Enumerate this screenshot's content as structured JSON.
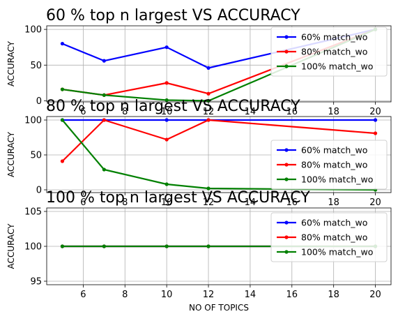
{
  "chart_data": [
    {
      "type": "line",
      "title": "60 % top n largest VS ACCURACY",
      "xlabel": "",
      "ylabel": "ACCURACY",
      "x": [
        5,
        7,
        10,
        12,
        20
      ],
      "xlim": [
        4.25,
        20.75
      ],
      "ylim": [
        -1.5,
        105
      ],
      "xticks": [
        6,
        8,
        10,
        12,
        14,
        16,
        18,
        20
      ],
      "yticks": [
        0,
        50,
        100
      ],
      "grid": true,
      "legend": "top-right",
      "series": [
        {
          "name": "60% match_wo",
          "color": "#0000ff",
          "values": [
            80,
            56,
            75,
            46,
            100
          ]
        },
        {
          "name": "80% match_wo",
          "color": "#ff0000",
          "values": [
            16,
            8,
            25,
            10,
            100
          ]
        },
        {
          "name": "100% match_wo",
          "color": "#008000",
          "values": [
            16,
            8,
            1,
            0,
            100
          ]
        }
      ]
    },
    {
      "type": "line",
      "title": "80 % top n largest VS ACCURACY",
      "xlabel": "",
      "ylabel": "ACCURACY",
      "x": [
        5,
        7,
        10,
        12,
        20
      ],
      "xlim": [
        4.25,
        20.75
      ],
      "ylim": [
        -4,
        105
      ],
      "xticks": [
        6,
        8,
        10,
        12,
        14,
        16,
        18,
        20
      ],
      "yticks": [
        0,
        50,
        100
      ],
      "grid": true,
      "legend": "center-right",
      "series": [
        {
          "name": "60% match_wo",
          "color": "#0000ff",
          "values": [
            100,
            100,
            100,
            100,
            100
          ]
        },
        {
          "name": "80% match_wo",
          "color": "#ff0000",
          "values": [
            41,
            100,
            72,
            100,
            81
          ]
        },
        {
          "name": "100% match_wo",
          "color": "#008000",
          "values": [
            100,
            29,
            8,
            2,
            0
          ]
        }
      ]
    },
    {
      "type": "line",
      "title": "100 % top n largest VS ACCURACY",
      "xlabel": "NO OF TOPICS",
      "ylabel": "ACCURACY",
      "x": [
        5,
        7,
        10,
        12,
        20
      ],
      "xlim": [
        4.25,
        20.75
      ],
      "ylim": [
        94.5,
        105.5
      ],
      "xticks": [
        6,
        8,
        10,
        12,
        14,
        16,
        18,
        20
      ],
      "yticks": [
        95,
        100,
        105
      ],
      "grid": true,
      "legend": "top-right",
      "series": [
        {
          "name": "60% match_wo",
          "color": "#0000ff",
          "values": [
            100,
            100,
            100,
            100,
            100
          ]
        },
        {
          "name": "80% match_wo",
          "color": "#ff0000",
          "values": [
            100,
            100,
            100,
            100,
            100
          ]
        },
        {
          "name": "100% match_wo",
          "color": "#008000",
          "values": [
            100,
            100,
            100,
            100,
            100
          ]
        }
      ]
    }
  ]
}
